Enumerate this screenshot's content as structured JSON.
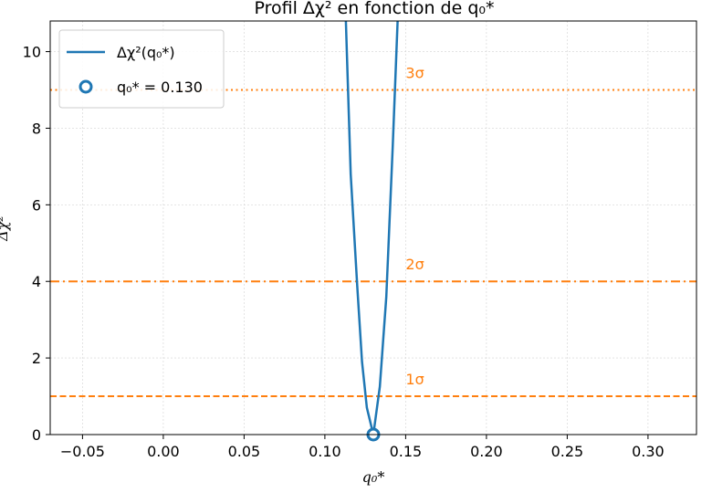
{
  "chart_data": {
    "type": "line",
    "title": "Profil Δχ² en fonction de q₀*",
    "xlabel": "q₀*",
    "ylabel": "Δχ²",
    "xlim": [
      -0.07,
      0.33
    ],
    "ylim": [
      0,
      10.8
    ],
    "xticks": [
      -0.05,
      0.0,
      0.05,
      0.1,
      0.15,
      0.2,
      0.25,
      0.3
    ],
    "xtick_labels": [
      "−0.05",
      "0.00",
      "0.05",
      "0.10",
      "0.15",
      "0.20",
      "0.25",
      "0.30"
    ],
    "yticks": [
      0,
      2,
      4,
      6,
      8,
      10
    ],
    "ytick_labels": [
      "0",
      "2",
      "4",
      "6",
      "8",
      "10"
    ],
    "grid": true,
    "legend_position": "top-left",
    "series": [
      {
        "name": "Δχ²(q₀*)",
        "color": "#1f77b4",
        "x": [
          0.113,
          0.116,
          0.12,
          0.123,
          0.126,
          0.13,
          0.134,
          0.138,
          0.142,
          0.145
        ],
        "y": [
          10.8,
          6.8,
          3.9,
          1.9,
          0.7,
          0.0,
          1.25,
          3.6,
          7.5,
          10.8
        ]
      }
    ],
    "best_fit": {
      "label": "q₀* = 0.130",
      "x": 0.13,
      "y": 0.0,
      "color": "#1f77b4"
    },
    "reference_lines": [
      {
        "y": 1,
        "label": "1σ",
        "style": "dashed",
        "color": "#ff7f0e",
        "label_x": 0.15
      },
      {
        "y": 4,
        "label": "2σ",
        "style": "dashdot",
        "color": "#ff7f0e",
        "label_x": 0.15
      },
      {
        "y": 9,
        "label": "3σ",
        "style": "dotted",
        "color": "#ff7f0e",
        "label_x": 0.15
      }
    ]
  }
}
